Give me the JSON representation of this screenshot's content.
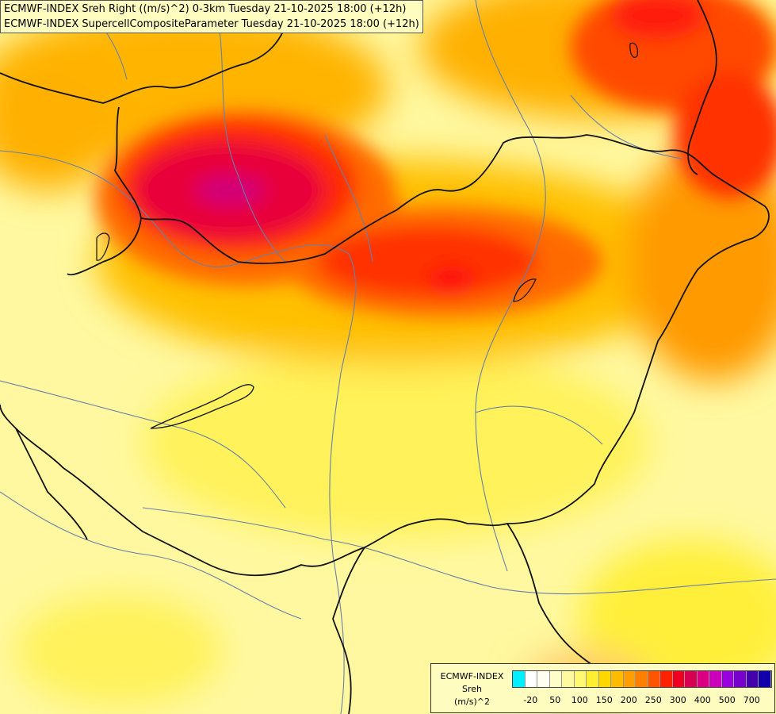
{
  "header": {
    "line1": "ECMWF-INDEX Sreh Right ((m/s)^2) 0-3km Tuesday 21-10-2025 18:00 (+12h)",
    "line2": "ECMWF-INDEX SupercellCompositeParameter Tuesday 21-10-2025 18:00 (+12h)"
  },
  "legend": {
    "line1": "ECMWF-INDEX",
    "line2": "Sreh",
    "line3": "(m/s)^2",
    "colors": [
      "#00eeff",
      "#ffffff",
      "#fffef0",
      "#fffccc",
      "#fffaa0",
      "#fff870",
      "#ffef30",
      "#ffd800",
      "#ffbb00",
      "#ff9e00",
      "#ff8000",
      "#ff5500",
      "#ff2200",
      "#ee0022",
      "#d80050",
      "#d80080",
      "#cc00bb",
      "#9900dd",
      "#7700cc",
      "#4400aa",
      "#1100aa"
    ],
    "ticks": [
      "-20",
      "50",
      "100",
      "150",
      "200",
      "250",
      "300",
      "400",
      "500",
      "700"
    ]
  }
}
